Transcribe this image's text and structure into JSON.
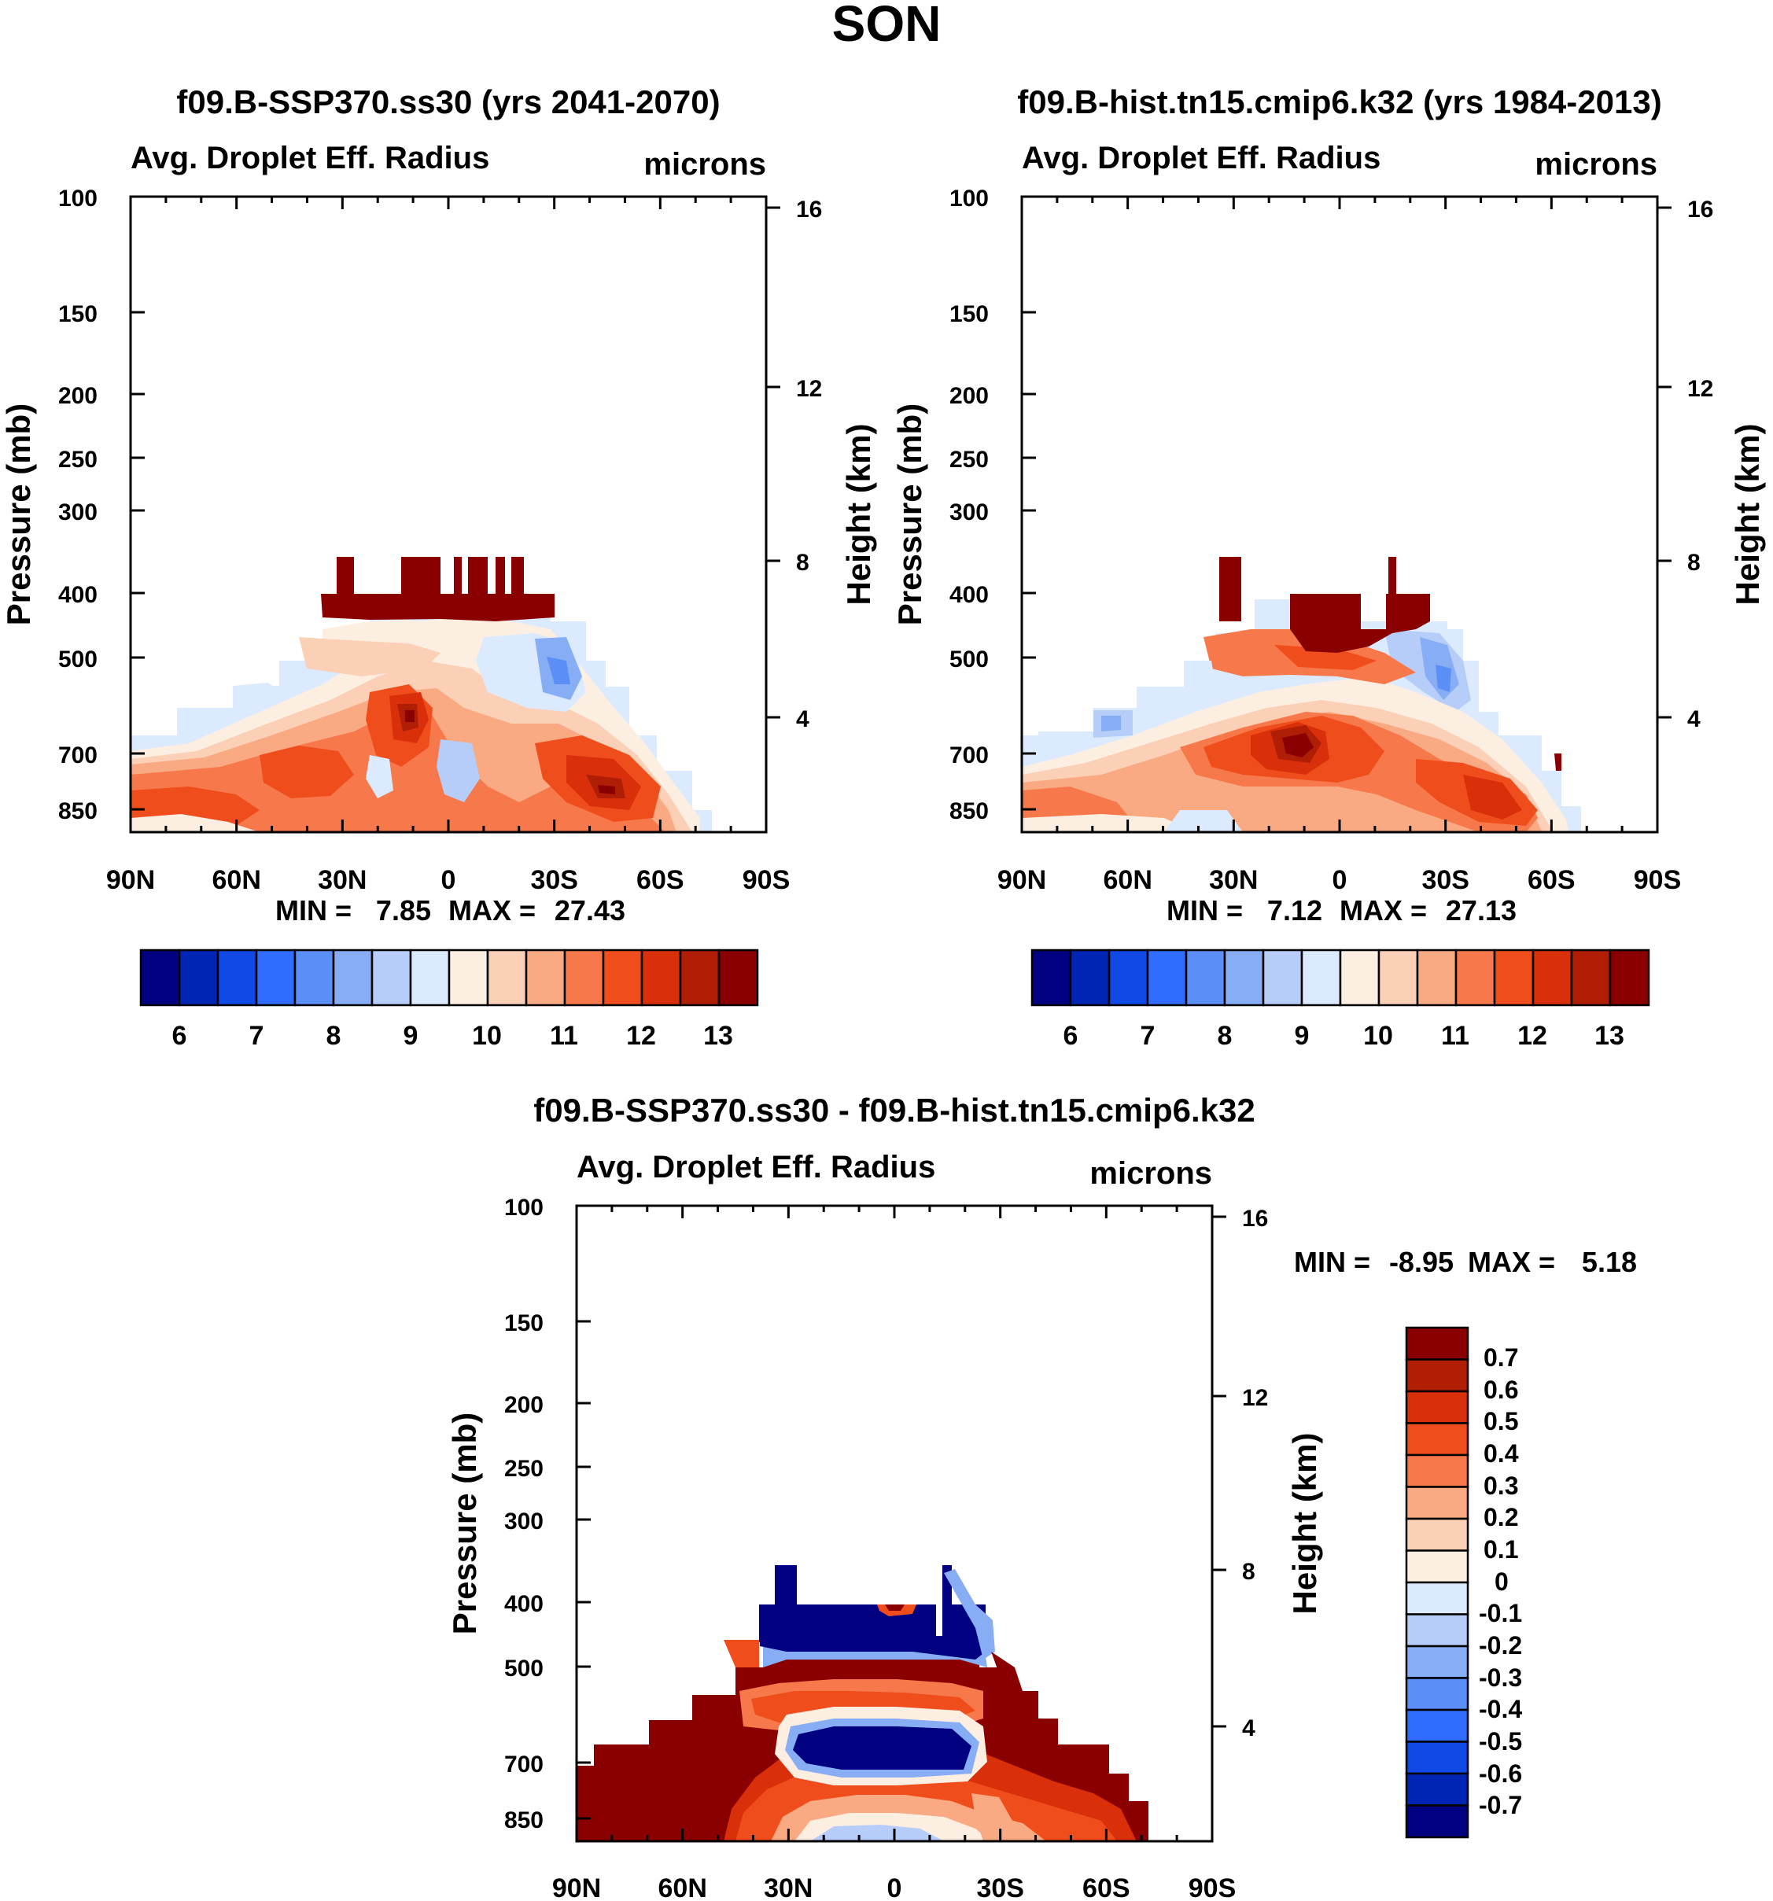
{
  "page_title": "SON",
  "chart_data": [
    {
      "type": "heatmap",
      "title": "f09.B-SSP370.ss30 (yrs 2041-2070)",
      "subtitle_left": "Avg. Droplet Eff. Radius",
      "subtitle_right": "microns",
      "ylabel": "Pressure (mb)",
      "ylabel_right": "Height (km)",
      "x_ticks": [
        "90N",
        "60N",
        "30N",
        "0",
        "30S",
        "60S",
        "90S"
      ],
      "y_ticks": [
        "100",
        "150",
        "200",
        "250",
        "300",
        "400",
        "500",
        "700",
        "850"
      ],
      "y_right_ticks": [
        "16",
        "12",
        "8",
        "4"
      ],
      "min_label": "MIN =",
      "min_value": "7.85",
      "max_label": "MAX =",
      "max_value": "27.43",
      "colorbar_labels": [
        "6",
        "7",
        "8",
        "9",
        "10",
        "11",
        "12",
        "13"
      ]
    },
    {
      "type": "heatmap",
      "title": "f09.B-hist.tn15.cmip6.k32 (yrs 1984-2013)",
      "subtitle_left": "Avg. Droplet Eff. Radius",
      "subtitle_right": "microns",
      "ylabel": "Pressure (mb)",
      "ylabel_right": "Height (km)",
      "x_ticks": [
        "90N",
        "60N",
        "30N",
        "0",
        "30S",
        "60S",
        "90S"
      ],
      "y_ticks": [
        "100",
        "150",
        "200",
        "250",
        "300",
        "400",
        "500",
        "700",
        "850"
      ],
      "y_right_ticks": [
        "16",
        "12",
        "8",
        "4"
      ],
      "min_label": "MIN =",
      "min_value": "7.12",
      "max_label": "MAX =",
      "max_value": "27.13",
      "colorbar_labels": [
        "6",
        "7",
        "8",
        "9",
        "10",
        "11",
        "12",
        "13"
      ]
    },
    {
      "type": "heatmap",
      "title": "f09.B-SSP370.ss30 - f09.B-hist.tn15.cmip6.k32",
      "subtitle_left": "Avg. Droplet Eff. Radius",
      "subtitle_right": "microns",
      "ylabel": "Pressure (mb)",
      "ylabel_right": "Height (km)",
      "x_ticks": [
        "90N",
        "60N",
        "30N",
        "0",
        "30S",
        "60S",
        "90S"
      ],
      "y_ticks": [
        "100",
        "150",
        "200",
        "250",
        "300",
        "400",
        "500",
        "700",
        "850"
      ],
      "y_right_ticks": [
        "16",
        "12",
        "8",
        "4"
      ],
      "min_label": "MIN =",
      "min_value": "-8.95",
      "max_label": "MAX =",
      "max_value": "5.18",
      "colorbar_labels": [
        "0.7",
        "0.6",
        "0.5",
        "0.4",
        "0.3",
        "0.2",
        "0.1",
        "0",
        "-0.1",
        "-0.2",
        "-0.3",
        "-0.4",
        "-0.5",
        "-0.6",
        "-0.7"
      ]
    }
  ],
  "colors": {
    "seq": [
      "#000080",
      "#0025b4",
      "#1149e6",
      "#2f6cff",
      "#5b8ff6",
      "#87aef4",
      "#b6cdf9",
      "#dbeaff",
      "#fdeee2",
      "#fbd0b6",
      "#f9aa83",
      "#f7784a",
      "#f04d1c",
      "#d92f0a",
      "#b01e06",
      "#8a0000"
    ],
    "diff": [
      "#8a0000",
      "#b01e06",
      "#d92f0a",
      "#f04d1c",
      "#f7784a",
      "#f9aa83",
      "#fbd0b6",
      "#fdeee2",
      "#dbeaff",
      "#b6cdf9",
      "#87aef4",
      "#5b8ff6",
      "#2f6cff",
      "#1149e6",
      "#0025b4",
      "#000080"
    ]
  }
}
